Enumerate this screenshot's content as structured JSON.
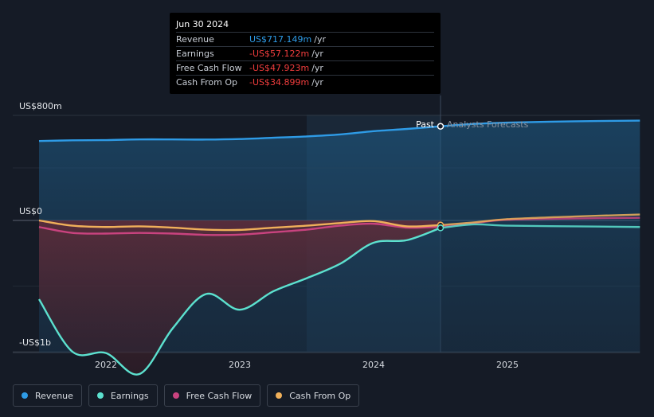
{
  "tooltip": {
    "date": "Jun 30 2024",
    "rows": [
      {
        "label": "Revenue",
        "value": "US$717.149m",
        "unit": "/yr",
        "color": "#2e9be6"
      },
      {
        "label": "Earnings",
        "value": "-US$57.122m",
        "unit": "/yr",
        "color": "#f23d3d"
      },
      {
        "label": "Free Cash Flow",
        "value": "-US$47.923m",
        "unit": "/yr",
        "color": "#f23d3d"
      },
      {
        "label": "Cash From Op",
        "value": "-US$34.899m",
        "unit": "/yr",
        "color": "#f23d3d"
      }
    ]
  },
  "labels": {
    "past": "Past",
    "forecast": "Analysts Forecasts"
  },
  "chart_data": {
    "type": "line",
    "y_tick_labels": [
      "US$800m",
      "US$0",
      "-US$1b"
    ],
    "x_tick_labels": [
      "2022",
      "2023",
      "2024",
      "2025"
    ],
    "x_range": [
      2021.5,
      2025.99
    ],
    "y_range": [
      -1000,
      800
    ],
    "past_end": 2024.5,
    "forecast_shade_start": 2023.5,
    "series": [
      {
        "name": "Revenue",
        "color": "#2e9be6",
        "points": [
          [
            2021.5,
            605
          ],
          [
            2021.75,
            610
          ],
          [
            2022.0,
            612
          ],
          [
            2022.25,
            617
          ],
          [
            2022.5,
            617
          ],
          [
            2022.75,
            616
          ],
          [
            2023.0,
            620
          ],
          [
            2023.25,
            630
          ],
          [
            2023.5,
            640
          ],
          [
            2023.75,
            655
          ],
          [
            2024.0,
            680
          ],
          [
            2024.25,
            697
          ],
          [
            2024.5,
            717
          ],
          [
            2024.75,
            735
          ],
          [
            2025.0,
            745
          ],
          [
            2025.5,
            755
          ],
          [
            2025.99,
            760
          ]
        ]
      },
      {
        "name": "Earnings",
        "color": "#5ce1cf",
        "points": [
          [
            2021.5,
            -600
          ],
          [
            2021.75,
            -1000
          ],
          [
            2022.0,
            -1010
          ],
          [
            2022.25,
            -1170
          ],
          [
            2022.5,
            -820
          ],
          [
            2022.75,
            -560
          ],
          [
            2023.0,
            -680
          ],
          [
            2023.25,
            -540
          ],
          [
            2023.5,
            -440
          ],
          [
            2023.75,
            -330
          ],
          [
            2024.0,
            -170
          ],
          [
            2024.25,
            -150
          ],
          [
            2024.5,
            -57
          ],
          [
            2024.75,
            -30
          ],
          [
            2025.0,
            -40
          ],
          [
            2025.5,
            -45
          ],
          [
            2025.99,
            -50
          ]
        ]
      },
      {
        "name": "Free Cash Flow",
        "color": "#c9437f",
        "points": [
          [
            2021.5,
            -50
          ],
          [
            2021.75,
            -95
          ],
          [
            2022.0,
            -100
          ],
          [
            2022.25,
            -95
          ],
          [
            2022.5,
            -100
          ],
          [
            2022.75,
            -110
          ],
          [
            2023.0,
            -108
          ],
          [
            2023.25,
            -90
          ],
          [
            2023.5,
            -70
          ],
          [
            2023.75,
            -40
          ],
          [
            2024.0,
            -25
          ],
          [
            2024.25,
            -55
          ],
          [
            2024.5,
            -48
          ],
          [
            2024.75,
            -20
          ],
          [
            2025.0,
            5
          ],
          [
            2025.5,
            15
          ],
          [
            2025.99,
            20
          ]
        ]
      },
      {
        "name": "Cash From Op",
        "color": "#f0b05a",
        "points": [
          [
            2021.5,
            0
          ],
          [
            2021.75,
            -40
          ],
          [
            2022.0,
            -50
          ],
          [
            2022.25,
            -45
          ],
          [
            2022.5,
            -55
          ],
          [
            2022.75,
            -70
          ],
          [
            2023.0,
            -72
          ],
          [
            2023.25,
            -55
          ],
          [
            2023.5,
            -40
          ],
          [
            2023.75,
            -20
          ],
          [
            2024.0,
            -5
          ],
          [
            2024.25,
            -45
          ],
          [
            2024.5,
            -35
          ],
          [
            2024.75,
            -15
          ],
          [
            2025.0,
            10
          ],
          [
            2025.5,
            30
          ],
          [
            2025.99,
            45
          ]
        ]
      }
    ]
  },
  "legend": [
    {
      "label": "Revenue",
      "color": "#2e9be6"
    },
    {
      "label": "Earnings",
      "color": "#5ce1cf"
    },
    {
      "label": "Free Cash Flow",
      "color": "#c9437f"
    },
    {
      "label": "Cash From Op",
      "color": "#f0b05a"
    }
  ]
}
